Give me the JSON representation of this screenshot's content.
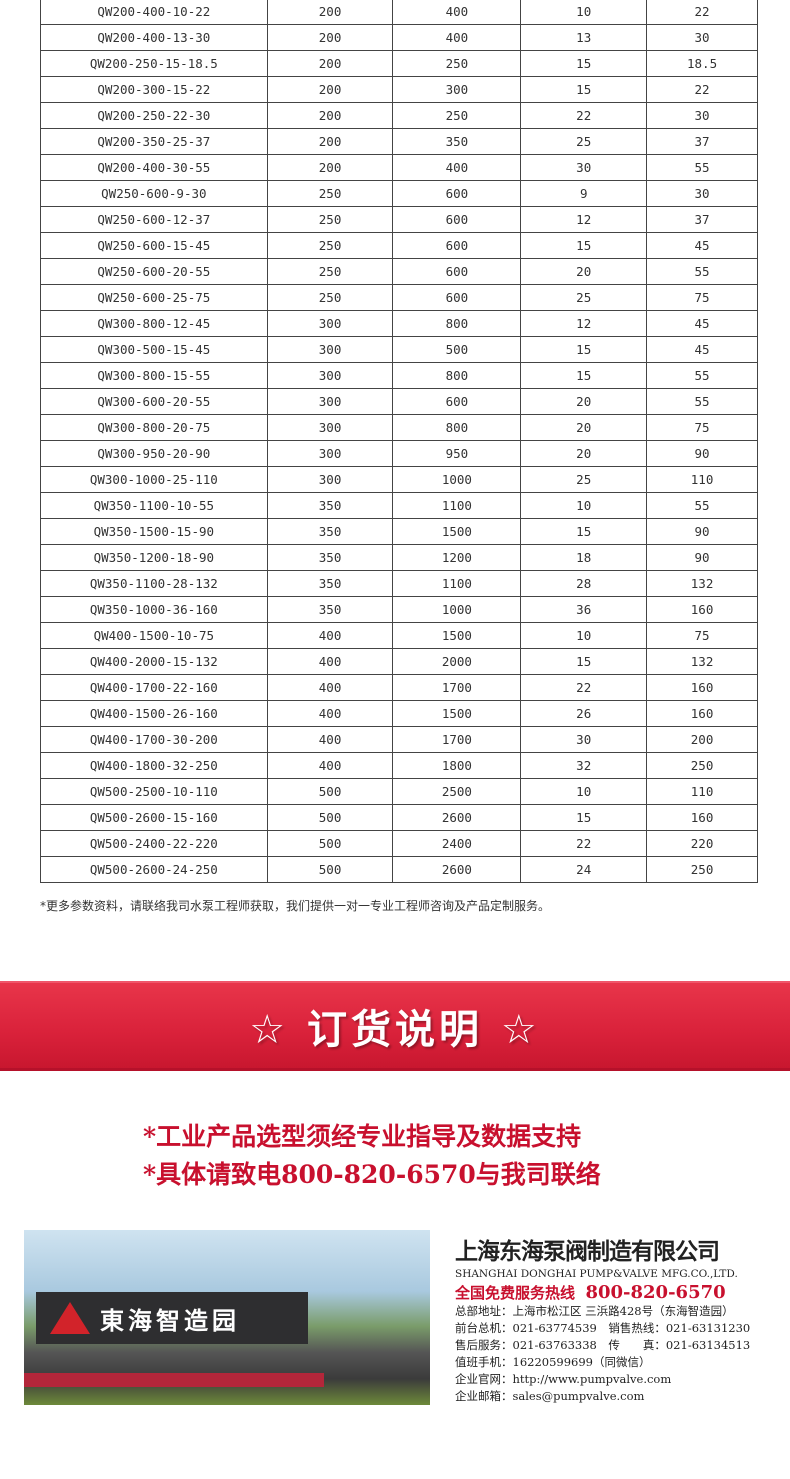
{
  "table": {
    "rows": [
      [
        "QW200-400-10-22",
        "200",
        "400",
        "10",
        "22"
      ],
      [
        "QW200-400-13-30",
        "200",
        "400",
        "13",
        "30"
      ],
      [
        "QW200-250-15-18.5",
        "200",
        "250",
        "15",
        "18.5"
      ],
      [
        "QW200-300-15-22",
        "200",
        "300",
        "15",
        "22"
      ],
      [
        "QW200-250-22-30",
        "200",
        "250",
        "22",
        "30"
      ],
      [
        "QW200-350-25-37",
        "200",
        "350",
        "25",
        "37"
      ],
      [
        "QW200-400-30-55",
        "200",
        "400",
        "30",
        "55"
      ],
      [
        "QW250-600-9-30",
        "250",
        "600",
        "9",
        "30"
      ],
      [
        "QW250-600-12-37",
        "250",
        "600",
        "12",
        "37"
      ],
      [
        "QW250-600-15-45",
        "250",
        "600",
        "15",
        "45"
      ],
      [
        "QW250-600-20-55",
        "250",
        "600",
        "20",
        "55"
      ],
      [
        "QW250-600-25-75",
        "250",
        "600",
        "25",
        "75"
      ],
      [
        "QW300-800-12-45",
        "300",
        "800",
        "12",
        "45"
      ],
      [
        "QW300-500-15-45",
        "300",
        "500",
        "15",
        "45"
      ],
      [
        "QW300-800-15-55",
        "300",
        "800",
        "15",
        "55"
      ],
      [
        "QW300-600-20-55",
        "300",
        "600",
        "20",
        "55"
      ],
      [
        "QW300-800-20-75",
        "300",
        "800",
        "20",
        "75"
      ],
      [
        "QW300-950-20-90",
        "300",
        "950",
        "20",
        "90"
      ],
      [
        "QW300-1000-25-110",
        "300",
        "1000",
        "25",
        "110"
      ],
      [
        "QW350-1100-10-55",
        "350",
        "1100",
        "10",
        "55"
      ],
      [
        "QW350-1500-15-90",
        "350",
        "1500",
        "15",
        "90"
      ],
      [
        "QW350-1200-18-90",
        "350",
        "1200",
        "18",
        "90"
      ],
      [
        "QW350-1100-28-132",
        "350",
        "1100",
        "28",
        "132"
      ],
      [
        "QW350-1000-36-160",
        "350",
        "1000",
        "36",
        "160"
      ],
      [
        "QW400-1500-10-75",
        "400",
        "1500",
        "10",
        "75"
      ],
      [
        "QW400-2000-15-132",
        "400",
        "2000",
        "15",
        "132"
      ],
      [
        "QW400-1700-22-160",
        "400",
        "1700",
        "22",
        "160"
      ],
      [
        "QW400-1500-26-160",
        "400",
        "1500",
        "26",
        "160"
      ],
      [
        "QW400-1700-30-200",
        "400",
        "1700",
        "30",
        "200"
      ],
      [
        "QW400-1800-32-250",
        "400",
        "1800",
        "32",
        "250"
      ],
      [
        "QW500-2500-10-110",
        "500",
        "2500",
        "10",
        "110"
      ],
      [
        "QW500-2600-15-160",
        "500",
        "2600",
        "15",
        "160"
      ],
      [
        "QW500-2400-22-220",
        "500",
        "2400",
        "22",
        "220"
      ],
      [
        "QW500-2600-24-250",
        "500",
        "2600",
        "24",
        "250"
      ]
    ]
  },
  "note": "*更多参数资料，请联络我司水泵工程师获取，我们提供一对一专业工程师咨询及产品定制服务。",
  "banner": {
    "title": "☆ 订货说明 ☆"
  },
  "order_lines": [
    "*工业产品选型须经专业指导及数据支持",
    "*具体请致电800-820-6570与我司联络"
  ],
  "photo": {
    "sign_text": "東海智造园"
  },
  "company": {
    "name_cn": "上海东海泵阀制造有限公司",
    "name_en": "SHANGHAI DONGHAI PUMP&VALVE MFG.CO.,LTD.",
    "hotline_label": "全国免费服务热线",
    "hotline": "800-820-6570",
    "lines": [
      "总部地址：上海市松江区 三浜路428号（东海智造园）",
      "前台总机：021-63774539　销售热线：021-63131230",
      "售后服务：021-63763338　传　　真：021-63134513",
      "值班手机：16220599699（同微信）",
      "企业官网：http://www.pumpvalve.com",
      "企业邮箱：sales@pumpvalve.com"
    ]
  },
  "colors": {
    "accent_red": "#c8102e",
    "banner_red": "#d9213a"
  }
}
